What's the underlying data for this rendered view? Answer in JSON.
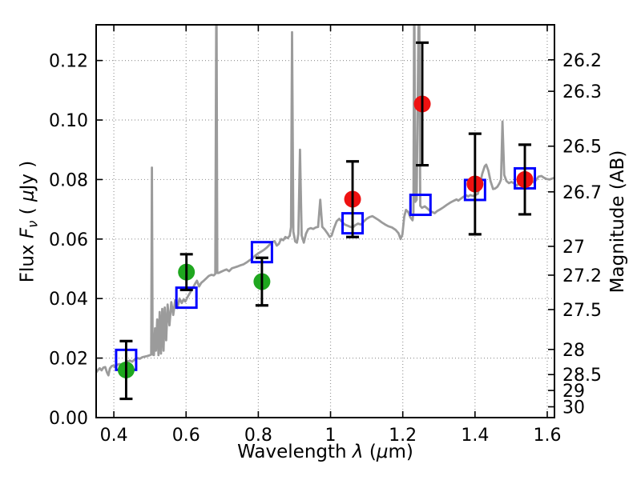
{
  "figure": {
    "title": "",
    "colors": {
      "background": "#ffffff",
      "spectrum": "#9b9b9b",
      "observed_optical": "#1fa71f",
      "observed_infrared": "#ee1111",
      "model_photometry_edge": "#0000ff",
      "errorbar": "#000000",
      "grid": "#999999",
      "spine": "#000000",
      "text": "#000000"
    }
  },
  "chart_data": {
    "type": "line+scatter",
    "title": "",
    "xlabel": "Wavelength λ (μm)",
    "ylabel_left": "Flux Fν ( μJy )",
    "ylabel_right": "Magnitude (AB)",
    "xlabel_segments": [
      {
        "text": "Wavelength  ",
        "style": "plain"
      },
      {
        "text": "λ",
        "style": "italic"
      },
      {
        "text": " (",
        "style": "plain"
      },
      {
        "text": "μ",
        "style": "italic"
      },
      {
        "text": "m)",
        "style": "plain"
      }
    ],
    "ylabel_left_segments": [
      {
        "text": "Flux  ",
        "style": "plain"
      },
      {
        "text": "F",
        "style": "italic"
      },
      {
        "text": "ν",
        "style": "italic-sub"
      },
      {
        "text": "  ( ",
        "style": "plain"
      },
      {
        "text": "μ",
        "style": "italic"
      },
      {
        "text": "Jy )",
        "style": "plain"
      }
    ],
    "ylabel_right_segments": [
      {
        "text": "Magnitude (AB)",
        "style": "plain"
      }
    ],
    "xlim": [
      0.351,
      1.62
    ],
    "ylim": [
      0,
      0.132
    ],
    "grid": true,
    "legend": null,
    "x_ticks": [
      0.4,
      0.6,
      0.8,
      1.0,
      1.2,
      1.4,
      1.6
    ],
    "x_tick_labels": [
      "0.4",
      "0.6",
      "0.8",
      "1",
      "1.2",
      "1.4",
      "1.6"
    ],
    "y_ticks_left": [
      0.0,
      0.02,
      0.04,
      0.06,
      0.08,
      0.1,
      0.12
    ],
    "y_tick_labels_left": [
      "0.00",
      "0.02",
      "0.04",
      "0.06",
      "0.08",
      "0.10",
      "0.12"
    ],
    "right_axis": {
      "type": "AB_magnitude",
      "note": "tick position = flux 3.631e9*10^(-0.4*mag) uJy on left flux scale",
      "ticks": [
        26.2,
        26.3,
        26.5,
        26.7,
        27,
        27.2,
        27.5,
        28,
        28.5,
        29,
        30
      ],
      "tick_labels": [
        "26.2",
        "26.3",
        "26.5",
        "26.7",
        "27",
        "27.2",
        "27.5",
        "28",
        "28.5",
        "29",
        "30"
      ]
    },
    "series": [
      {
        "name": "model-spectrum",
        "type": "line",
        "color_key": "spectrum",
        "points": [
          [
            0.351,
            0.0152
          ],
          [
            0.356,
            0.016
          ],
          [
            0.361,
            0.0166
          ],
          [
            0.366,
            0.0159
          ],
          [
            0.371,
            0.0168
          ],
          [
            0.376,
            0.017
          ],
          [
            0.381,
            0.0152
          ],
          [
            0.385,
            0.0142
          ],
          [
            0.389,
            0.0165
          ],
          [
            0.394,
            0.0173
          ],
          [
            0.399,
            0.0175
          ],
          [
            0.404,
            0.017
          ],
          [
            0.41,
            0.0178
          ],
          [
            0.416,
            0.018
          ],
          [
            0.423,
            0.0177
          ],
          [
            0.43,
            0.0184
          ],
          [
            0.437,
            0.0188
          ],
          [
            0.444,
            0.0192
          ],
          [
            0.451,
            0.0188
          ],
          [
            0.458,
            0.0196
          ],
          [
            0.465,
            0.02
          ],
          [
            0.472,
            0.0198
          ],
          [
            0.479,
            0.0203
          ],
          [
            0.486,
            0.0205
          ],
          [
            0.493,
            0.0207
          ],
          [
            0.5,
            0.021
          ],
          [
            0.5035,
            0.0212
          ],
          [
            0.5055,
            0.084
          ],
          [
            0.5075,
            0.0212
          ],
          [
            0.511,
            0.021
          ],
          [
            0.514,
            0.03
          ],
          [
            0.5165,
            0.0225
          ],
          [
            0.52,
            0.033
          ],
          [
            0.5235,
            0.021
          ],
          [
            0.527,
            0.0355
          ],
          [
            0.5305,
            0.0215
          ],
          [
            0.534,
            0.0365
          ],
          [
            0.5375,
            0.0225
          ],
          [
            0.541,
            0.037
          ],
          [
            0.545,
            0.026
          ],
          [
            0.549,
            0.038
          ],
          [
            0.554,
            0.031
          ],
          [
            0.559,
            0.0388
          ],
          [
            0.5645,
            0.0345
          ],
          [
            0.57,
            0.0395
          ],
          [
            0.576,
            0.0368
          ],
          [
            0.582,
            0.04
          ],
          [
            0.588,
            0.0385
          ],
          [
            0.5935,
            0.0398
          ],
          [
            0.598,
            0.039
          ],
          [
            0.604,
            0.0405
          ],
          [
            0.611,
            0.042
          ],
          [
            0.618,
            0.0434
          ],
          [
            0.625,
            0.045
          ],
          [
            0.63,
            0.046
          ],
          [
            0.636,
            0.0441
          ],
          [
            0.642,
            0.0453
          ],
          [
            0.649,
            0.046
          ],
          [
            0.656,
            0.0468
          ],
          [
            0.663,
            0.0476
          ],
          [
            0.67,
            0.048
          ],
          [
            0.677,
            0.0478
          ],
          [
            0.681,
            0.0483
          ],
          [
            0.684,
            0.15
          ],
          [
            0.6865,
            0.0486
          ],
          [
            0.69,
            0.0486
          ],
          [
            0.697,
            0.049
          ],
          [
            0.704,
            0.0494
          ],
          [
            0.712,
            0.0498
          ],
          [
            0.719,
            0.0492
          ],
          [
            0.727,
            0.0502
          ],
          [
            0.735,
            0.0505
          ],
          [
            0.743,
            0.0508
          ],
          [
            0.751,
            0.0512
          ],
          [
            0.759,
            0.0515
          ],
          [
            0.767,
            0.0521
          ],
          [
            0.775,
            0.0528
          ],
          [
            0.783,
            0.0534
          ],
          [
            0.791,
            0.0544
          ],
          [
            0.799,
            0.0551
          ],
          [
            0.807,
            0.0557
          ],
          [
            0.815,
            0.0563
          ],
          [
            0.823,
            0.0571
          ],
          [
            0.831,
            0.0581
          ],
          [
            0.839,
            0.059
          ],
          [
            0.845,
            0.0593
          ],
          [
            0.851,
            0.0578
          ],
          [
            0.857,
            0.0584
          ],
          [
            0.863,
            0.06
          ],
          [
            0.869,
            0.0596
          ],
          [
            0.875,
            0.0607
          ],
          [
            0.881,
            0.0603
          ],
          [
            0.887,
            0.0611
          ],
          [
            0.8905,
            0.064
          ],
          [
            0.8935,
            0.1295
          ],
          [
            0.897,
            0.0625
          ],
          [
            0.902,
            0.0592
          ],
          [
            0.907,
            0.0588
          ],
          [
            0.911,
            0.0618
          ],
          [
            0.9155,
            0.09
          ],
          [
            0.92,
            0.0612
          ],
          [
            0.926,
            0.0588
          ],
          [
            0.932,
            0.0618
          ],
          [
            0.938,
            0.0633
          ],
          [
            0.945,
            0.0637
          ],
          [
            0.952,
            0.0634
          ],
          [
            0.959,
            0.0639
          ],
          [
            0.9655,
            0.0641
          ],
          [
            0.9715,
            0.0732
          ],
          [
            0.977,
            0.0641
          ],
          [
            0.984,
            0.0632
          ],
          [
            0.991,
            0.062
          ],
          [
            0.998,
            0.0607
          ],
          [
            1.003,
            0.0612
          ],
          [
            1.01,
            0.0638
          ],
          [
            1.017,
            0.066
          ],
          [
            1.024,
            0.0668
          ],
          [
            1.031,
            0.0659
          ],
          [
            1.039,
            0.0649
          ],
          [
            1.047,
            0.0645
          ],
          [
            1.055,
            0.0641
          ],
          [
            1.062,
            0.0639
          ],
          [
            1.069,
            0.0647
          ],
          [
            1.076,
            0.0652
          ],
          [
            1.084,
            0.0649
          ],
          [
            1.092,
            0.0659
          ],
          [
            1.1,
            0.0668
          ],
          [
            1.108,
            0.0674
          ],
          [
            1.116,
            0.0677
          ],
          [
            1.124,
            0.0671
          ],
          [
            1.133,
            0.0664
          ],
          [
            1.142,
            0.0656
          ],
          [
            1.151,
            0.0649
          ],
          [
            1.16,
            0.0643
          ],
          [
            1.17,
            0.0639
          ],
          [
            1.18,
            0.0631
          ],
          [
            1.188,
            0.062
          ],
          [
            1.194,
            0.06
          ],
          [
            1.199,
            0.0615
          ],
          [
            1.204,
            0.0675
          ],
          [
            1.209,
            0.0698
          ],
          [
            1.215,
            0.0691
          ],
          [
            1.221,
            0.0673
          ],
          [
            1.227,
            0.0663
          ],
          [
            1.2295,
            0.069
          ],
          [
            1.2318,
            0.15
          ],
          [
            1.2345,
            0.0725
          ],
          [
            1.2385,
            0.0732
          ],
          [
            1.245,
            0.15
          ],
          [
            1.2485,
            0.0712
          ],
          [
            1.253,
            0.0705
          ],
          [
            1.261,
            0.071
          ],
          [
            1.268,
            0.0703
          ],
          [
            1.276,
            0.0694
          ],
          [
            1.283,
            0.069
          ],
          [
            1.288,
            0.0687
          ],
          [
            1.295,
            0.0694
          ],
          [
            1.304,
            0.07
          ],
          [
            1.313,
            0.0707
          ],
          [
            1.322,
            0.0715
          ],
          [
            1.331,
            0.0722
          ],
          [
            1.34,
            0.0728
          ],
          [
            1.349,
            0.0733
          ],
          [
            1.354,
            0.0729
          ],
          [
            1.36,
            0.0735
          ],
          [
            1.368,
            0.0742
          ],
          [
            1.376,
            0.0747
          ],
          [
            1.381,
            0.0743
          ],
          [
            1.387,
            0.0748
          ],
          [
            1.394,
            0.0745
          ],
          [
            1.401,
            0.0748
          ],
          [
            1.408,
            0.0752
          ],
          [
            1.414,
            0.0785
          ],
          [
            1.42,
            0.082
          ],
          [
            1.427,
            0.0845
          ],
          [
            1.431,
            0.085
          ],
          [
            1.437,
            0.083
          ],
          [
            1.443,
            0.0795
          ],
          [
            1.45,
            0.0768
          ],
          [
            1.456,
            0.077
          ],
          [
            1.462,
            0.0776
          ],
          [
            1.468,
            0.0788
          ],
          [
            1.472,
            0.08
          ],
          [
            1.476,
            0.0995
          ],
          [
            1.481,
            0.0815
          ],
          [
            1.487,
            0.0795
          ],
          [
            1.494,
            0.0788
          ],
          [
            1.501,
            0.0792
          ],
          [
            1.509,
            0.0786
          ],
          [
            1.516,
            0.0779
          ],
          [
            1.523,
            0.0792
          ],
          [
            1.53,
            0.08
          ],
          [
            1.538,
            0.0804
          ],
          [
            1.546,
            0.0808
          ],
          [
            1.554,
            0.08
          ],
          [
            1.563,
            0.079
          ],
          [
            1.57,
            0.08
          ],
          [
            1.576,
            0.081
          ],
          [
            1.584,
            0.0812
          ],
          [
            1.591,
            0.0806
          ],
          [
            1.598,
            0.0802
          ],
          [
            1.606,
            0.08
          ],
          [
            1.613,
            0.0803
          ],
          [
            1.62,
            0.0806
          ]
        ]
      },
      {
        "name": "observed-photometry-optical",
        "type": "scatter",
        "marker": "circle-filled",
        "color_key": "observed_optical",
        "points": [
          {
            "x": 0.434,
            "flux": 0.016,
            "err": 0.0097
          },
          {
            "x": 0.601,
            "flux": 0.0489,
            "err": 0.006
          },
          {
            "x": 0.81,
            "flux": 0.0457,
            "err": 0.008
          }
        ]
      },
      {
        "name": "observed-photometry-infrared",
        "type": "scatter",
        "marker": "circle-filled",
        "color_key": "observed_infrared",
        "points": [
          {
            "x": 1.061,
            "flux": 0.0734,
            "err": 0.0127
          },
          {
            "x": 1.254,
            "flux": 0.1054,
            "err": 0.0206
          },
          {
            "x": 1.4,
            "flux": 0.0785,
            "err": 0.0169
          },
          {
            "x": 1.538,
            "flux": 0.08,
            "err": 0.0117
          }
        ]
      },
      {
        "name": "model-photometry",
        "type": "scatter",
        "marker": "square-open",
        "color_key": "model_photometry_edge",
        "points": [
          {
            "x": 0.434,
            "flux": 0.0194
          },
          {
            "x": 0.601,
            "flux": 0.0403
          },
          {
            "x": 0.81,
            "flux": 0.0556
          },
          {
            "x": 1.061,
            "flux": 0.0653
          },
          {
            "x": 1.249,
            "flux": 0.0715
          },
          {
            "x": 1.4,
            "flux": 0.0765
          },
          {
            "x": 1.538,
            "flux": 0.0804
          }
        ]
      }
    ]
  }
}
